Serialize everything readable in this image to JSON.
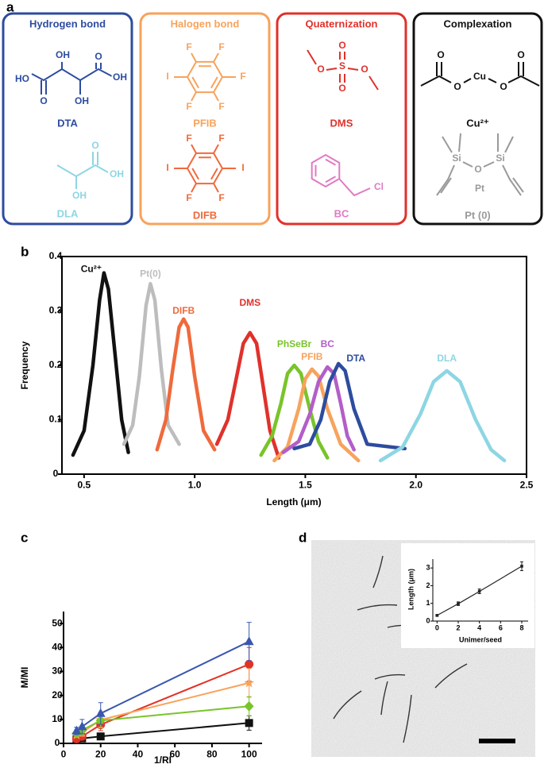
{
  "panel_labels": [
    "a",
    "b",
    "c",
    "d"
  ],
  "structures": {
    "boxes": [
      {
        "title": "Hydrogen bond",
        "molecules": [
          {
            "atoms": [
              "HO",
              "OH",
              "O",
              "OH",
              "O",
              "OH"
            ],
            "name": "DTA",
            "color": "#2d4c9f"
          },
          {
            "atoms": [
              "O",
              "OH",
              "OH"
            ],
            "name": "DLA",
            "color": "#8dd6e3"
          }
        ]
      },
      {
        "title": "Halogen bond",
        "molecules": [
          {
            "atoms": [
              "F",
              "F",
              "I",
              "F",
              "F",
              "F"
            ],
            "name": "PFIB",
            "color": "#f7a35c"
          },
          {
            "atoms": [
              "F",
              "F",
              "I",
              "I",
              "F",
              "F"
            ],
            "name": "DIFB",
            "color": "#ef6a3c"
          }
        ]
      },
      {
        "title": "Quaternization",
        "molecules": [
          {
            "atoms": [
              "O",
              "O",
              "S",
              "O",
              "O"
            ],
            "name": "DMS",
            "color": "#e0312b"
          },
          {
            "atoms": [
              "Cl"
            ],
            "name": "BC",
            "color": "#e07ac4"
          }
        ]
      },
      {
        "title": "Complexation",
        "molecules": [
          {
            "atoms": [
              "O",
              "O",
              "Cu",
              "O",
              "O"
            ],
            "name": "Cu²⁺",
            "color": "#111111"
          },
          {
            "atoms": [
              "Si",
              "O",
              "Si",
              "Pt"
            ],
            "name": "Pt (0)",
            "color": "#9a9a9a"
          }
        ]
      }
    ]
  },
  "chart_data": [
    {
      "type": "line",
      "x_label": "Length (μm)",
      "y_label": "Frequency",
      "xlim": [
        0.4,
        2.5
      ],
      "ylim": [
        0,
        0.4
      ],
      "xticks": [
        0.5,
        {
          "value": 1,
          "label": "1.0"
        },
        1.5,
        {
          "value": 2,
          "label": "2.0"
        },
        2.5
      ],
      "yticks": [
        0,
        0.1,
        0.2,
        0.3,
        0.4
      ],
      "frame": true,
      "series_labels": true,
      "series": [
        {
          "name": "Cu²⁺",
          "color": "#111111",
          "x": [
            0.45,
            0.5,
            0.54,
            0.57,
            0.59,
            0.61,
            0.64,
            0.67,
            0.7
          ],
          "values": [
            0.035,
            0.08,
            0.2,
            0.32,
            0.37,
            0.34,
            0.22,
            0.1,
            0.04
          ]
        },
        {
          "name": "Pt(0)",
          "color": "#bdbdbd",
          "x": [
            0.68,
            0.72,
            0.75,
            0.78,
            0.8,
            0.82,
            0.85,
            0.88,
            0.93
          ],
          "values": [
            0.055,
            0.09,
            0.18,
            0.31,
            0.35,
            0.32,
            0.19,
            0.09,
            0.055
          ]
        },
        {
          "name": "DIFB",
          "color": "#ef6a3c",
          "x": [
            0.83,
            0.87,
            0.9,
            0.93,
            0.95,
            0.97,
            1.0,
            1.04,
            1.09
          ],
          "values": [
            0.045,
            0.1,
            0.19,
            0.27,
            0.285,
            0.27,
            0.18,
            0.08,
            0.045
          ]
        },
        {
          "name": "DMS",
          "color": "#e0312b",
          "x": [
            1.1,
            1.15,
            1.19,
            1.22,
            1.25,
            1.28,
            1.31,
            1.34,
            1.38
          ],
          "values": [
            0.055,
            0.1,
            0.18,
            0.24,
            0.26,
            0.24,
            0.16,
            0.08,
            0.03
          ]
        },
        {
          "name": "PhSeBr",
          "color": "#79c42a",
          "x": [
            1.3,
            1.35,
            1.39,
            1.42,
            1.45,
            1.48,
            1.52,
            1.56,
            1.6
          ],
          "values": [
            0.035,
            0.07,
            0.13,
            0.185,
            0.2,
            0.185,
            0.12,
            0.06,
            0.03
          ]
        },
        {
          "name": "PFIB",
          "color": "#f7a35c",
          "x": [
            1.36,
            1.42,
            1.47,
            1.5,
            1.53,
            1.56,
            1.6,
            1.66,
            1.74
          ],
          "values": [
            0.025,
            0.05,
            0.12,
            0.175,
            0.193,
            0.18,
            0.12,
            0.055,
            0.025
          ]
        },
        {
          "name": "BC",
          "color": "#b35ec8",
          "x": [
            1.4,
            1.47,
            1.52,
            1.56,
            1.6,
            1.63,
            1.66,
            1.69,
            1.72
          ],
          "values": [
            0.04,
            0.06,
            0.11,
            0.17,
            0.197,
            0.185,
            0.13,
            0.07,
            0.045
          ]
        },
        {
          "name": "DTA",
          "color": "#2d4c9f",
          "x": [
            1.45,
            1.52,
            1.57,
            1.61,
            1.65,
            1.68,
            1.72,
            1.78,
            1.95
          ],
          "values": [
            0.047,
            0.055,
            0.1,
            0.17,
            0.203,
            0.19,
            0.12,
            0.055,
            0.047
          ]
        },
        {
          "name": "DLA",
          "color": "#8dd6e3",
          "x": [
            1.84,
            1.94,
            2.02,
            2.08,
            2.14,
            2.2,
            2.27,
            2.34,
            2.4
          ],
          "values": [
            0.025,
            0.05,
            0.11,
            0.17,
            0.19,
            0.17,
            0.1,
            0.045,
            0.025
          ]
        }
      ]
    },
    {
      "type": "line",
      "x_label": "1/RI",
      "y_label": "M/MI",
      "xlim": [
        0,
        107
      ],
      "ylim": [
        0,
        55
      ],
      "xticks": [
        0,
        20,
        40,
        60,
        80,
        100
      ],
      "yticks": [
        0,
        10,
        20,
        30,
        40,
        50
      ],
      "x": [
        7,
        10,
        20,
        100
      ],
      "series": [
        {
          "color": "#111111",
          "marker": "square",
          "values": [
            1.7,
            2.1,
            2.9,
            8.5
          ],
          "errors": [
            0.5,
            0.6,
            1.2,
            3
          ]
        },
        {
          "color": "#e23226",
          "marker": "circle",
          "values": [
            1.9,
            2.9,
            7.8,
            33
          ],
          "errors": [
            0.6,
            1,
            2.5,
            7
          ]
        },
        {
          "color": "#f7a35c",
          "marker": "star",
          "values": [
            3.5,
            4.5,
            9.8,
            25.2
          ],
          "errors": [
            1,
            1.5,
            3,
            6
          ]
        },
        {
          "color": "#79c42a",
          "marker": "diamond",
          "values": [
            4.2,
            5.5,
            9.5,
            15.5
          ],
          "errors": [
            1.2,
            2,
            3,
            4
          ]
        },
        {
          "color": "#3a57b0",
          "marker": "triangle",
          "values": [
            5.2,
            7,
            12.5,
            42.5
          ],
          "errors": [
            1.5,
            3,
            4.5,
            8
          ]
        }
      ]
    },
    {
      "type": "line",
      "x_label": "Unimer/seed",
      "y_label": "Length (μm)",
      "xlim": [
        -0.4,
        8.6
      ],
      "ylim": [
        0,
        3.5
      ],
      "xticks": [
        0,
        2,
        4,
        6,
        8
      ],
      "yticks": [
        0,
        1,
        2,
        3
      ],
      "x": [
        0,
        2,
        4,
        8
      ],
      "series": [
        {
          "color": "#222222",
          "marker": "square",
          "values": [
            0.32,
            0.98,
            1.68,
            3.1
          ],
          "errors": [
            0.04,
            0.1,
            0.13,
            0.25
          ]
        }
      ]
    }
  ]
}
